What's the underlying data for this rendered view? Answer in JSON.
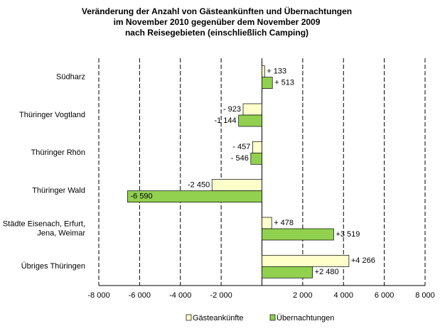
{
  "chart_data": {
    "type": "hbar",
    "title": [
      "Veränderung  der Anzahl von Gästeankünften  und Übernachtungen",
      "im November 2010 gegenüber dem November 2009",
      "nach Reisegebieten  (einschließlich Camping)"
    ],
    "categories": [
      "Südharz",
      "Thüringer Vogtland",
      "Thüringer Rhön",
      "Thüringer Wald",
      [
        "Städte Eisenach, Erfurt,",
        "Jena, Weimar"
      ],
      "Übriges Thüringen"
    ],
    "series": [
      {
        "name": "Gästeankünfte",
        "color": "#ffffcc",
        "values": [
          133,
          -923,
          -457,
          -2450,
          478,
          4266
        ],
        "value_labels": [
          "+ 133",
          "- 923",
          "- 457",
          "-2 450",
          "+ 478",
          "+4 266"
        ]
      },
      {
        "name": "Übernachtungen",
        "color": "#92d050",
        "values": [
          513,
          -1144,
          -546,
          -6590,
          3519,
          2480
        ],
        "value_labels": [
          "+ 513",
          "-1 144",
          "- 546",
          "-6 590",
          "+3 519",
          "+2 480"
        ]
      }
    ],
    "xlim": [
      -8000,
      8000
    ],
    "xticks": [
      {
        "value": -8000,
        "label": "-8 000"
      },
      {
        "value": -6000,
        "label": "-6 000"
      },
      {
        "value": -4000,
        "label": "-4 000"
      },
      {
        "value": -2000,
        "label": "-2 000"
      },
      {
        "value": 2000,
        "label": "2 000"
      },
      {
        "value": 4000,
        "label": "4 000"
      },
      {
        "value": 6000,
        "label": "6 000"
      },
      {
        "value": 8000,
        "label": "8 000"
      }
    ],
    "grid": true
  }
}
